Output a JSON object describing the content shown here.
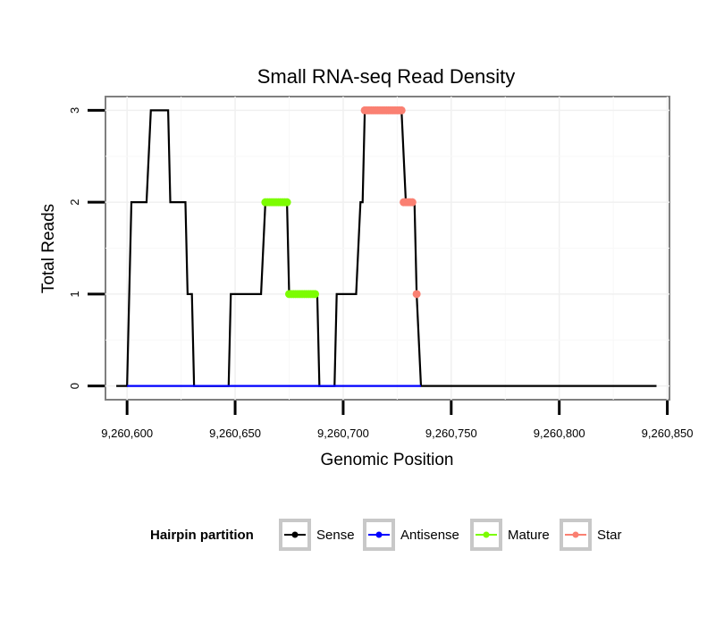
{
  "chart_data": {
    "type": "line",
    "title": "Small RNA-seq Read Density",
    "xlabel": "Genomic Position",
    "ylabel": "Total Reads",
    "xlim": [
      9260590,
      9260851
    ],
    "ylim": [
      -0.15,
      3.15
    ],
    "x_ticks": [
      9260600,
      9260650,
      9260700,
      9260750,
      9260800,
      9260850
    ],
    "x_tick_labels": [
      "9,260,600",
      "9,260,650",
      "9,260,700",
      "9,260,750",
      "9,260,800",
      "9,260,850"
    ],
    "y_ticks": [
      0,
      1,
      2,
      3
    ],
    "y_tick_labels": [
      "0",
      "1",
      "2",
      "3"
    ],
    "grid": true,
    "legend": {
      "title": "Hairpin partition",
      "position": "bottom",
      "entries": [
        {
          "name": "Sense",
          "color": "#000000"
        },
        {
          "name": "Antisense",
          "color": "#0000ff"
        },
        {
          "name": "Mature",
          "color": "#7cfc00"
        },
        {
          "name": "Star",
          "color": "#fa8072"
        }
      ]
    },
    "series": [
      {
        "name": "Sense",
        "color": "#000000",
        "style": "line",
        "x": [
          9260595,
          9260600,
          9260602,
          9260602.5,
          9260609,
          9260611,
          9260619,
          9260620,
          9260627,
          9260628,
          9260630,
          9260631,
          9260647,
          9260648,
          9260662,
          9260664,
          9260674,
          9260675,
          9260688,
          9260689,
          9260696,
          9260697,
          9260706,
          9260708,
          9260709,
          9260710,
          9260727,
          9260729,
          9260733,
          9260734,
          9260736,
          9260845
        ],
        "y": [
          0,
          0,
          2,
          2,
          2,
          3,
          3,
          2,
          2,
          1,
          1,
          0,
          0,
          1,
          1,
          2,
          2,
          1,
          1,
          0,
          0,
          1,
          1,
          2,
          2,
          3,
          3,
          2,
          2,
          1,
          0,
          0
        ]
      },
      {
        "name": "Antisense",
        "color": "#0000ff",
        "style": "line",
        "x": [
          9260600,
          9260736
        ],
        "y": [
          0,
          0
        ]
      },
      {
        "name": "Mature",
        "color": "#7cfc00",
        "style": "points",
        "x": [
          9260664,
          9260665,
          9260666,
          9260667,
          9260668,
          9260669,
          9260670,
          9260671,
          9260672,
          9260673,
          9260674,
          9260675,
          9260676,
          9260677,
          9260678,
          9260679,
          9260680,
          9260681,
          9260682,
          9260683,
          9260684,
          9260685,
          9260686,
          9260687
        ],
        "y": [
          2,
          2,
          2,
          2,
          2,
          2,
          2,
          2,
          2,
          2,
          2,
          1,
          1,
          1,
          1,
          1,
          1,
          1,
          1,
          1,
          1,
          1,
          1,
          1
        ]
      },
      {
        "name": "Star",
        "color": "#fa8072",
        "style": "points",
        "x": [
          9260710,
          9260711,
          9260712,
          9260713,
          9260714,
          9260715,
          9260716,
          9260717,
          9260718,
          9260719,
          9260720,
          9260721,
          9260722,
          9260723,
          9260724,
          9260725,
          9260726,
          9260727,
          9260728,
          9260729,
          9260730,
          9260731,
          9260732,
          9260734
        ],
        "y": [
          3,
          3,
          3,
          3,
          3,
          3,
          3,
          3,
          3,
          3,
          3,
          3,
          3,
          3,
          3,
          3,
          3,
          3,
          2,
          2,
          2,
          2,
          2,
          1
        ]
      }
    ]
  }
}
